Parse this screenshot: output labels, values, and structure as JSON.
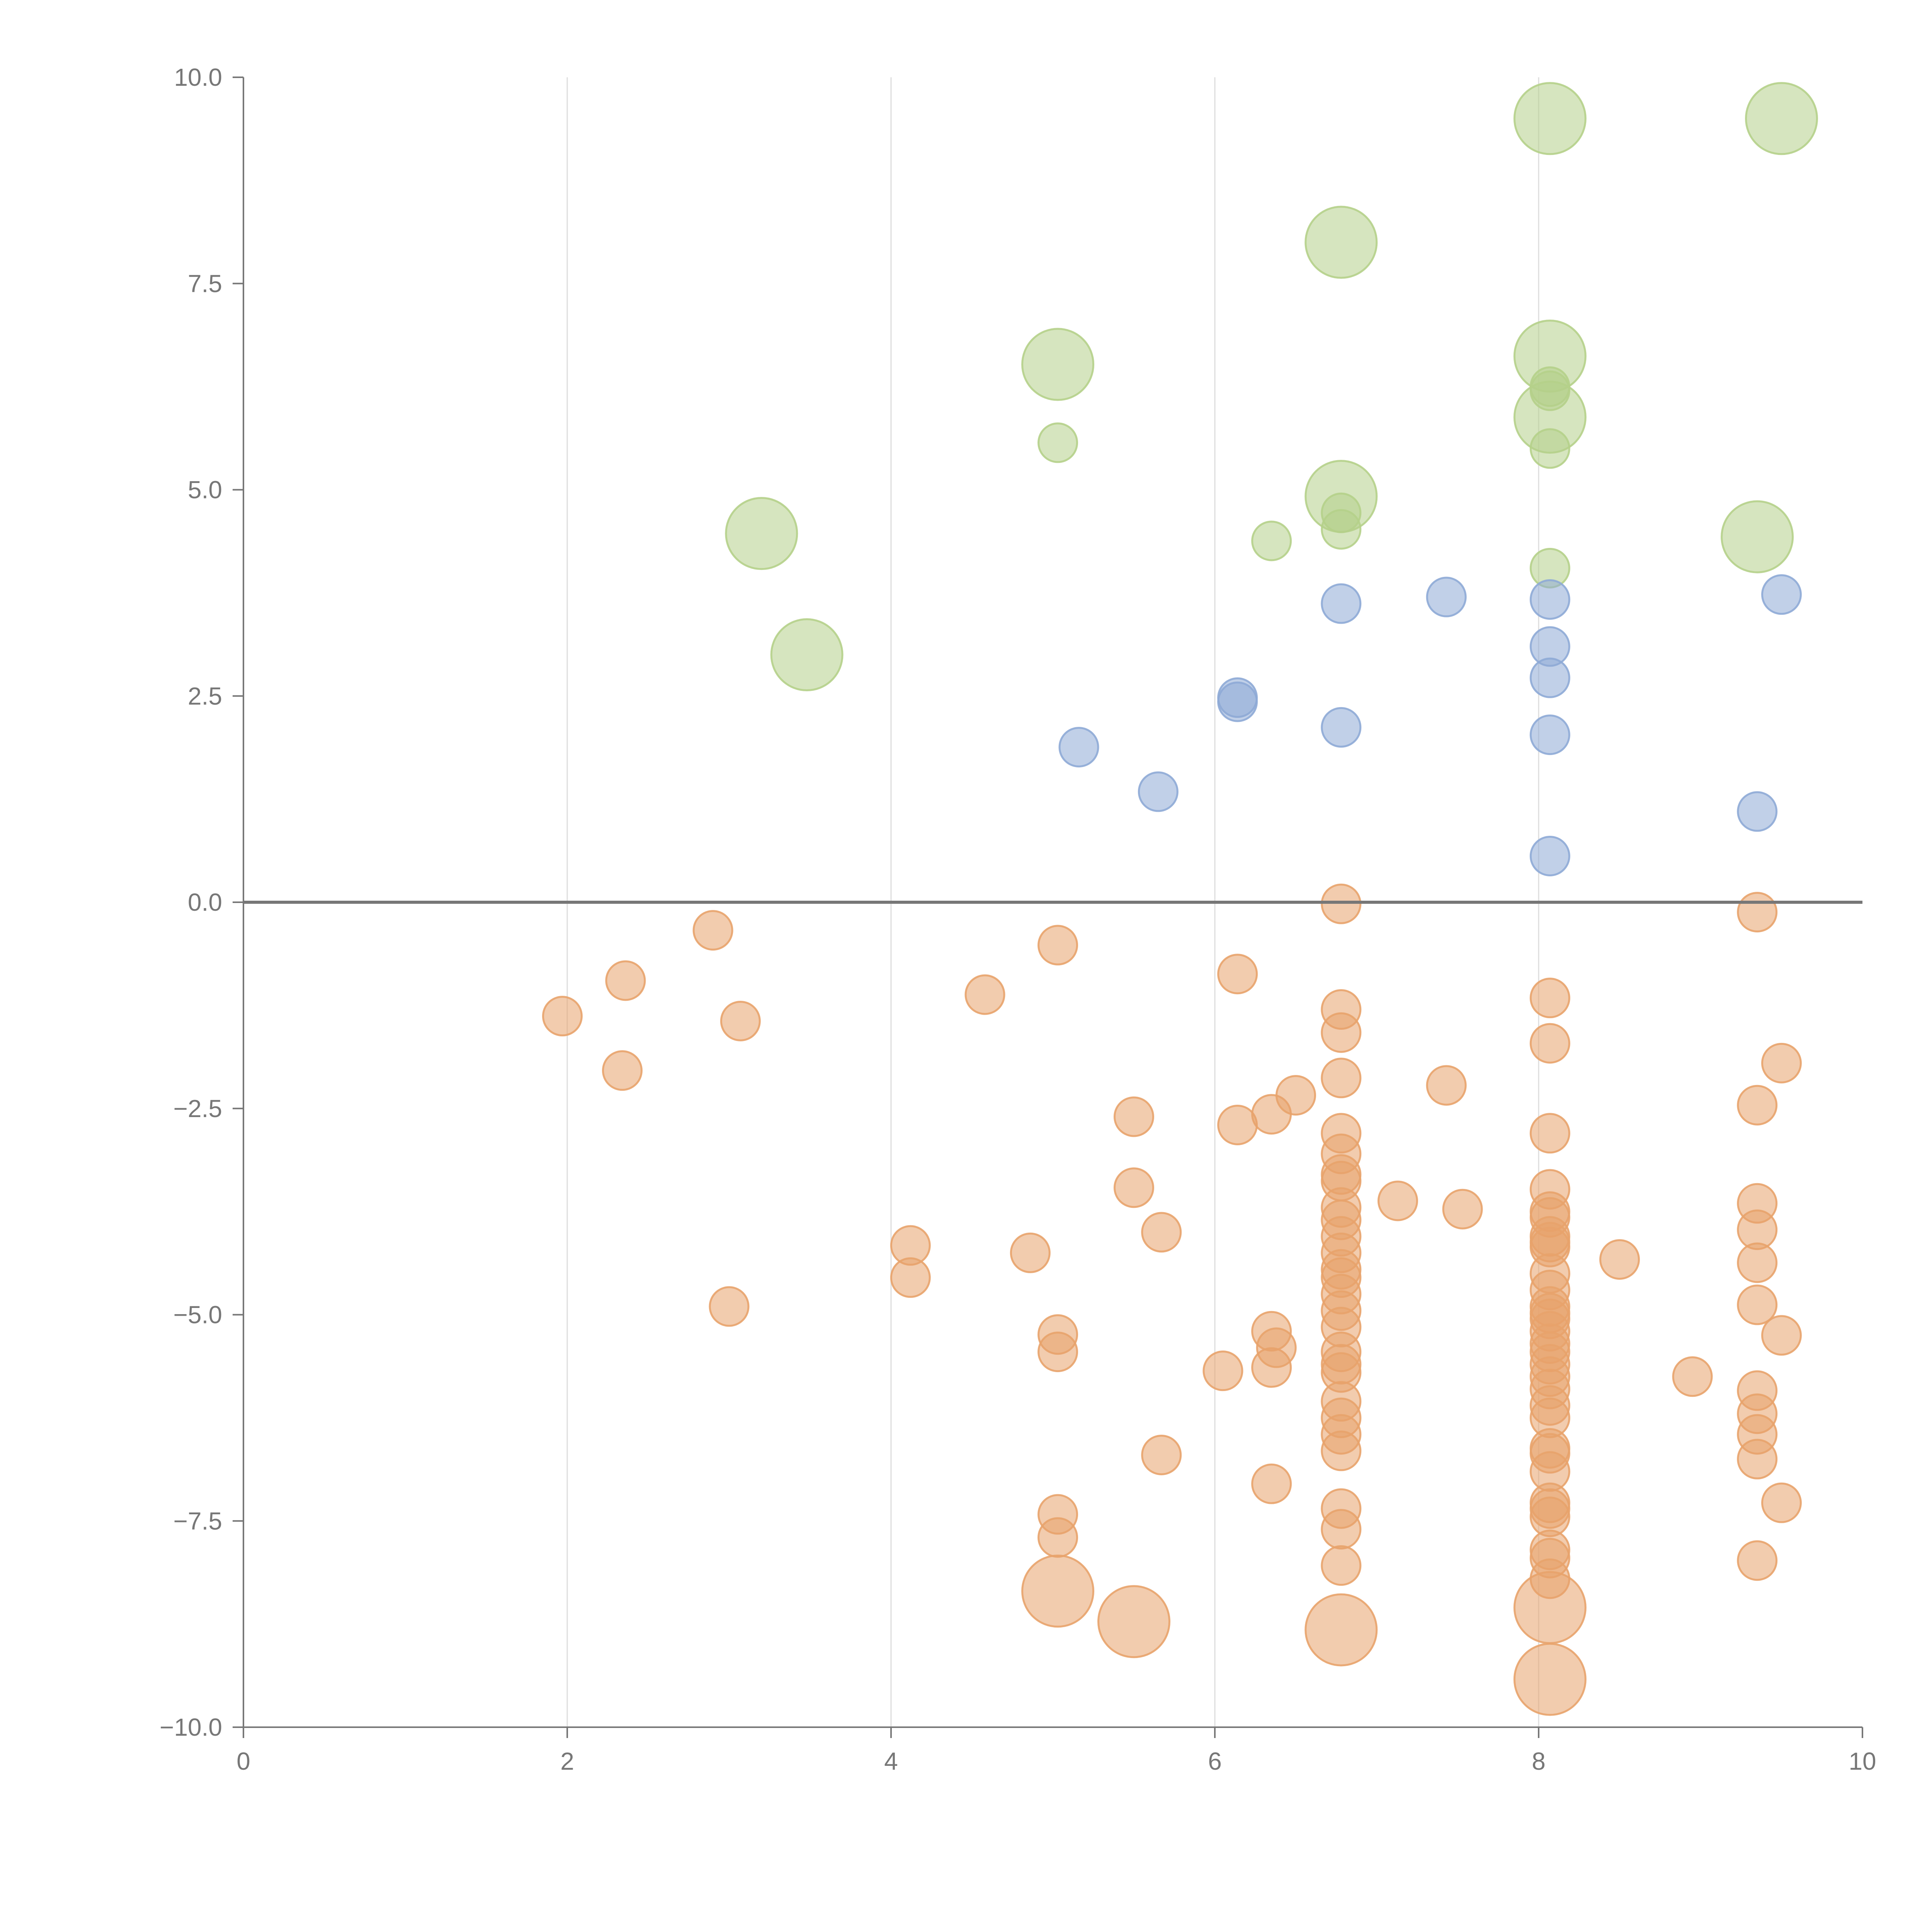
{
  "chart_data": {
    "type": "scatter",
    "title": "",
    "xlabel": "",
    "ylabel": "",
    "xlim": [
      0,
      10
    ],
    "ylim": [
      -10,
      10
    ],
    "x_ticks": [
      0,
      2,
      4,
      6,
      8,
      10
    ],
    "x_tick_labels": [
      "0",
      "2",
      "4",
      "6",
      "8",
      "10"
    ],
    "y_ticks": [
      10,
      7.5,
      5,
      2.5,
      0,
      -2.5,
      -5,
      -7.5,
      -10
    ],
    "y_tick_labels": [
      "10.0",
      "7.5",
      "5.0",
      "2.5",
      "0.0",
      "−2.5",
      "−5.0",
      "−7.5",
      "−10.0"
    ],
    "vertical_gridlines": [
      2,
      4,
      6,
      8
    ],
    "zero_line": 0,
    "colors": {
      "green": "#b5d08a",
      "blue": "#8eaad6",
      "orange": "#e8a36c",
      "axis": "#777777",
      "grid": "#dddddd",
      "zero_line": "#777777"
    },
    "series": [
      {
        "name": "green",
        "color": "#b5d08a",
        "points": [
          [
            3.2,
            4.47,
            4
          ],
          [
            3.48,
            3.0,
            4
          ],
          [
            5.03,
            6.52,
            4
          ],
          [
            5.03,
            5.57,
            2
          ],
          [
            6.35,
            4.38,
            2
          ],
          [
            6.78,
            8.0,
            4
          ],
          [
            6.78,
            4.92,
            4
          ],
          [
            6.78,
            4.72,
            2
          ],
          [
            6.78,
            4.52,
            2
          ],
          [
            8.07,
            9.5,
            4
          ],
          [
            8.07,
            6.62,
            4
          ],
          [
            8.07,
            6.25,
            2
          ],
          [
            8.07,
            6.2,
            2
          ],
          [
            8.07,
            5.88,
            4
          ],
          [
            8.07,
            5.5,
            2
          ],
          [
            8.07,
            4.05,
            2
          ],
          [
            9.35,
            4.43,
            4
          ],
          [
            9.5,
            9.5,
            4
          ]
        ]
      },
      {
        "name": "blue",
        "color": "#8eaad6",
        "points": [
          [
            5.16,
            1.88,
            2
          ],
          [
            5.65,
            1.34,
            2
          ],
          [
            6.14,
            2.48,
            2
          ],
          [
            6.14,
            2.43,
            2
          ],
          [
            6.78,
            3.62,
            2
          ],
          [
            6.78,
            2.12,
            2
          ],
          [
            7.43,
            3.7,
            2
          ],
          [
            8.07,
            3.67,
            2
          ],
          [
            8.07,
            3.1,
            2
          ],
          [
            8.07,
            2.72,
            2
          ],
          [
            8.07,
            2.03,
            2
          ],
          [
            8.07,
            0.56,
            2
          ],
          [
            9.35,
            1.1,
            2
          ],
          [
            9.5,
            3.73,
            2
          ]
        ]
      },
      {
        "name": "orange",
        "color": "#e8a36c",
        "points": [
          [
            1.97,
            -1.38,
            2
          ],
          [
            2.34,
            -2.04,
            2
          ],
          [
            2.36,
            -0.95,
            2
          ],
          [
            2.9,
            -0.34,
            2
          ],
          [
            3.0,
            -4.9,
            2
          ],
          [
            3.07,
            -1.44,
            2
          ],
          [
            4.12,
            -4.16,
            2
          ],
          [
            4.12,
            -4.55,
            2
          ],
          [
            4.58,
            -1.12,
            2
          ],
          [
            4.86,
            -4.25,
            2
          ],
          [
            5.03,
            -0.52,
            2
          ],
          [
            5.03,
            -5.24,
            2
          ],
          [
            5.03,
            -5.45,
            2
          ],
          [
            5.03,
            -7.42,
            2
          ],
          [
            5.03,
            -7.7,
            2
          ],
          [
            5.03,
            -8.35,
            4
          ],
          [
            5.5,
            -2.6,
            2
          ],
          [
            5.5,
            -3.46,
            2
          ],
          [
            5.5,
            -8.72,
            4
          ],
          [
            5.67,
            -4.0,
            2
          ],
          [
            5.67,
            -6.7,
            2
          ],
          [
            6.05,
            -5.68,
            2
          ],
          [
            6.14,
            -0.87,
            2
          ],
          [
            6.14,
            -2.7,
            2
          ],
          [
            6.35,
            -2.57,
            2
          ],
          [
            6.35,
            -5.2,
            2
          ],
          [
            6.35,
            -5.64,
            2
          ],
          [
            6.35,
            -7.05,
            2
          ],
          [
            6.38,
            -5.4,
            2
          ],
          [
            6.5,
            -2.34,
            2
          ],
          [
            6.78,
            -0.02,
            2
          ],
          [
            6.78,
            -1.3,
            2
          ],
          [
            6.78,
            -1.58,
            2
          ],
          [
            6.78,
            -2.13,
            2
          ],
          [
            6.78,
            -2.8,
            2
          ],
          [
            6.78,
            -3.05,
            2
          ],
          [
            6.78,
            -3.3,
            2
          ],
          [
            6.78,
            -3.38,
            2
          ],
          [
            6.78,
            -3.7,
            2
          ],
          [
            6.78,
            -3.85,
            2
          ],
          [
            6.78,
            -4.05,
            2
          ],
          [
            6.78,
            -4.25,
            2
          ],
          [
            6.78,
            -4.45,
            2
          ],
          [
            6.78,
            -4.55,
            2
          ],
          [
            6.78,
            -4.75,
            2
          ],
          [
            6.78,
            -4.95,
            2
          ],
          [
            6.78,
            -5.15,
            2
          ],
          [
            6.78,
            -5.45,
            2
          ],
          [
            6.78,
            -5.6,
            2
          ],
          [
            6.78,
            -5.7,
            2
          ],
          [
            6.78,
            -6.05,
            2
          ],
          [
            6.78,
            -6.25,
            2
          ],
          [
            6.78,
            -6.45,
            2
          ],
          [
            6.78,
            -6.65,
            2
          ],
          [
            6.78,
            -7.35,
            2
          ],
          [
            6.78,
            -7.6,
            2
          ],
          [
            6.78,
            -8.04,
            2
          ],
          [
            6.78,
            -8.82,
            4
          ],
          [
            7.13,
            -3.62,
            2
          ],
          [
            7.43,
            -2.22,
            2
          ],
          [
            7.53,
            -3.72,
            2
          ],
          [
            8.07,
            -1.16,
            2
          ],
          [
            8.07,
            -1.71,
            2
          ],
          [
            8.07,
            -2.8,
            2
          ],
          [
            8.07,
            -3.48,
            2
          ],
          [
            8.07,
            -3.75,
            2
          ],
          [
            8.07,
            -3.82,
            2
          ],
          [
            8.07,
            -4.05,
            2
          ],
          [
            8.07,
            -4.12,
            2
          ],
          [
            8.07,
            -4.18,
            2
          ],
          [
            8.07,
            -4.5,
            2
          ],
          [
            8.07,
            -4.7,
            2
          ],
          [
            8.07,
            -4.9,
            2
          ],
          [
            8.07,
            -4.98,
            2
          ],
          [
            8.07,
            -5.05,
            2
          ],
          [
            8.07,
            -5.2,
            2
          ],
          [
            8.07,
            -5.35,
            2
          ],
          [
            8.07,
            -5.45,
            2
          ],
          [
            8.07,
            -5.6,
            2
          ],
          [
            8.07,
            -5.75,
            2
          ],
          [
            8.07,
            -5.9,
            2
          ],
          [
            8.07,
            -6.1,
            2
          ],
          [
            8.07,
            -6.25,
            2
          ],
          [
            8.07,
            -6.62,
            2
          ],
          [
            8.07,
            -6.68,
            2
          ],
          [
            8.07,
            -6.9,
            2
          ],
          [
            8.07,
            -7.28,
            2
          ],
          [
            8.07,
            -7.35,
            2
          ],
          [
            8.07,
            -7.45,
            2
          ],
          [
            8.07,
            -7.85,
            2
          ],
          [
            8.07,
            -7.95,
            2
          ],
          [
            8.07,
            -8.2,
            2
          ],
          [
            8.07,
            -8.55,
            4
          ],
          [
            8.07,
            -9.42,
            4
          ],
          [
            8.5,
            -4.33,
            2
          ],
          [
            8.95,
            -5.75,
            2
          ],
          [
            9.35,
            -0.12,
            2
          ],
          [
            9.35,
            -2.46,
            2
          ],
          [
            9.35,
            -3.65,
            2
          ],
          [
            9.35,
            -3.97,
            2
          ],
          [
            9.35,
            -4.37,
            2
          ],
          [
            9.35,
            -4.88,
            2
          ],
          [
            9.35,
            -5.92,
            2
          ],
          [
            9.35,
            -6.2,
            2
          ],
          [
            9.35,
            -6.45,
            2
          ],
          [
            9.35,
            -6.75,
            2
          ],
          [
            9.35,
            -7.98,
            2
          ],
          [
            9.5,
            -1.95,
            2
          ],
          [
            9.5,
            -5.25,
            2
          ],
          [
            9.5,
            -7.28,
            2
          ]
        ]
      }
    ]
  }
}
